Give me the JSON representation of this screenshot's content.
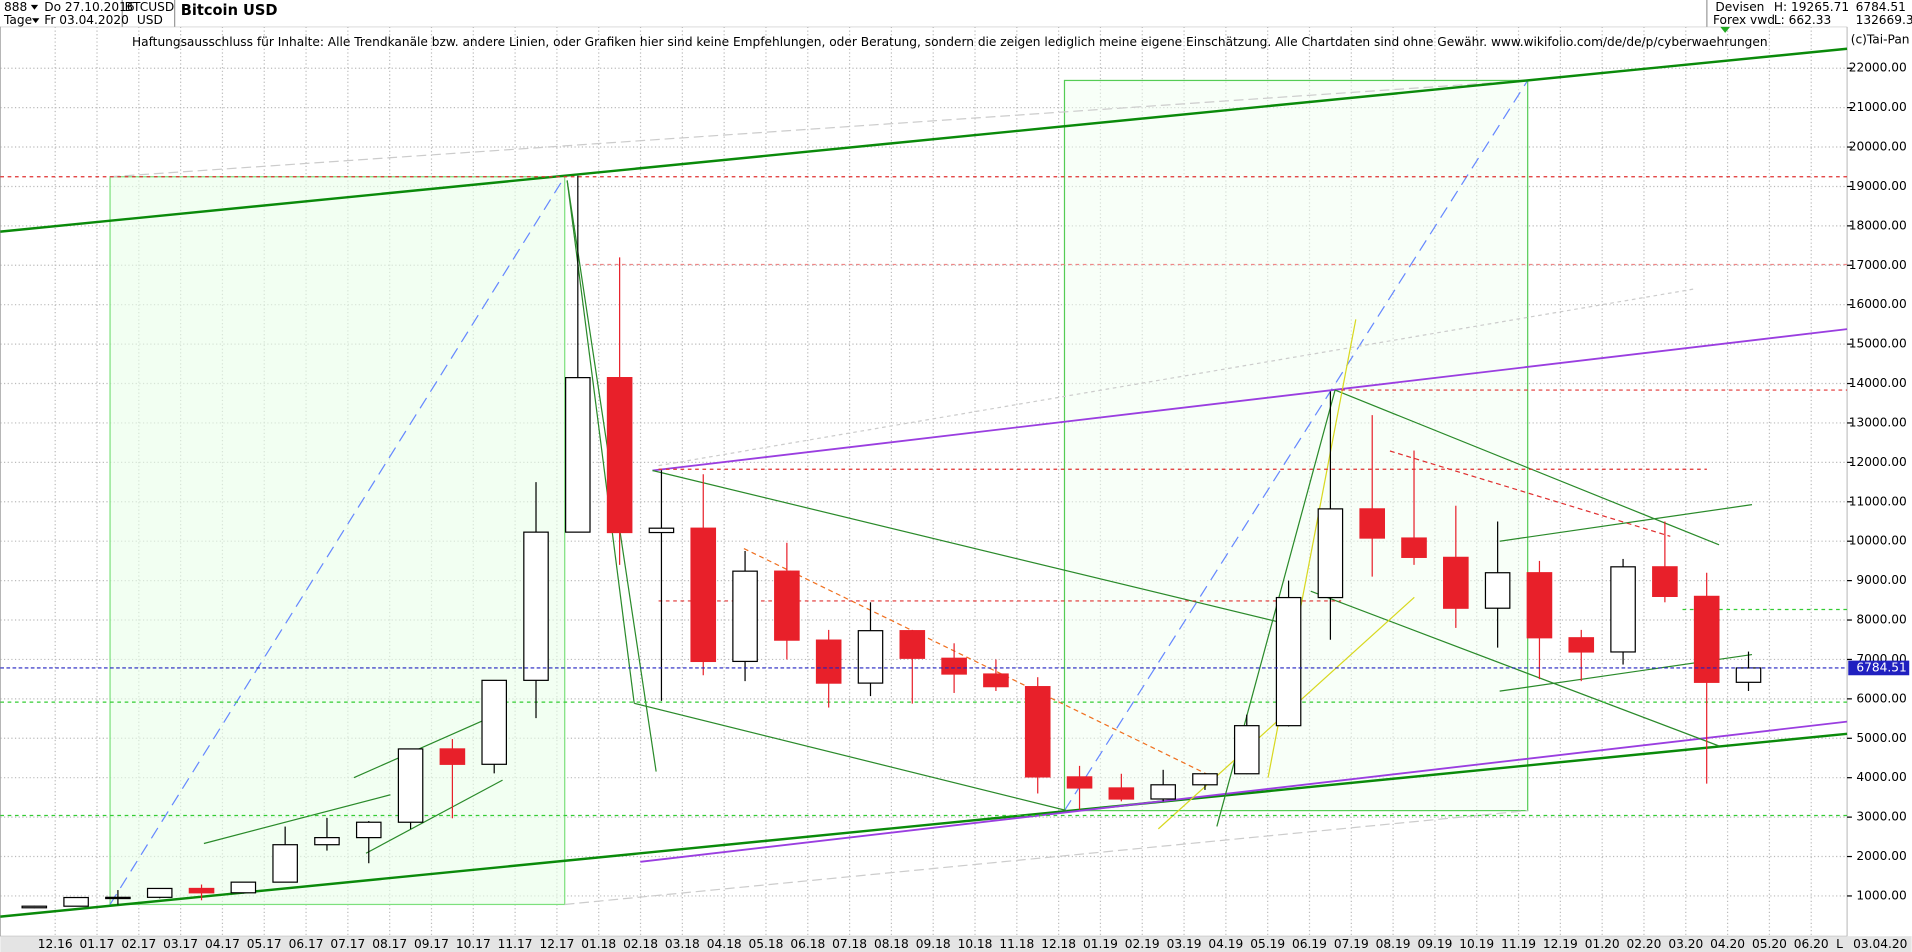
{
  "header": {
    "id": "888",
    "start_date": "Do 27.10.2016",
    "symbol": "BTCUSD",
    "currency": "USD",
    "period": "Tage",
    "end_date": "Fr 03.04.2020",
    "market": "Devisen",
    "source": "Forex vwd",
    "high": "H: 19265.71",
    "low": "L: 662.33",
    "last": "6784.51",
    "volume": "132669.3",
    "copyright": "(c)Tai-Pan",
    "axis_end_date": "03.04.20",
    "axis_scale": "L",
    "disclaimer": "Haftungsausschluss für Inhalte: Alle Trendkanäle bzw. andere Linien, oder Grafiken hier sind keine Empfehlungen, oder Beratung, sondern die zeigen lediglich meine eigene Einschätzung. Alle Chartdaten sind ohne Gewähr.  www.wikifolio.com/de/de/p/cyberwaehrungen"
  },
  "chart_data": {
    "type": "candlestick",
    "title": "Bitcoin USD",
    "categories": [
      null,
      "12.16",
      "01.17",
      "02.17",
      "03.17",
      "04.17",
      "05.17",
      "06.17",
      "07.17",
      "08.17",
      "09.17",
      "10.17",
      "11.17",
      "12.17",
      "01.18",
      "02.18",
      "03.18",
      "04.18",
      "05.18",
      "06.18",
      "07.18",
      "08.18",
      "09.18",
      "10.18",
      "11.18",
      "12.18",
      "01.19",
      "02.19",
      "03.19",
      "04.19",
      "05.19",
      "06.19",
      "07.19",
      "08.19",
      "09.19",
      "10.19",
      "11.19",
      "12.19",
      "01.20",
      "02.20",
      "03.20",
      "04.20",
      "05.20",
      "06.20"
    ],
    "open": [
      700,
      740,
      960,
      965,
      1190,
      1080,
      1350,
      2300,
      2480,
      2870,
      4730,
      4340,
      6470,
      10230,
      14150,
      10220,
      10330,
      6950,
      9240,
      7490,
      6400,
      7730,
      7030,
      6630,
      6310,
      4020,
      3740,
      3460,
      3820,
      4100,
      5320,
      8570,
      10820,
      10080,
      9590,
      8300,
      9200,
      7550,
      7190,
      9350,
      8600,
      6420,
      null,
      null
    ],
    "high": [
      750,
      970,
      1150,
      1200,
      1290,
      1350,
      2760,
      2980,
      2900,
      4740,
      4980,
      6470,
      11500,
      19270,
      17200,
      11800,
      11700,
      9750,
      9960,
      7750,
      8450,
      7750,
      7410,
      7000,
      6550,
      4300,
      4100,
      4200,
      4110,
      5600,
      9000,
      13800,
      13200,
      12300,
      10900,
      10500,
      9500,
      7750,
      9550,
      10500,
      9200,
      7200,
      null,
      null
    ],
    "low": [
      690,
      740,
      780,
      940,
      890,
      1060,
      1350,
      2150,
      1830,
      2700,
      2970,
      4110,
      5510,
      10230,
      9400,
      5950,
      6600,
      6450,
      7000,
      5780,
      6070,
      5880,
      6150,
      6200,
      3600,
      3190,
      3400,
      3400,
      3690,
      4090,
      5300,
      7500,
      9100,
      9400,
      7800,
      7300,
      6500,
      6450,
      6870,
      8450,
      3850,
      6200,
      null,
      null
    ],
    "close": [
      740,
      960,
      965,
      1190,
      1080,
      1350,
      2300,
      2480,
      2870,
      4730,
      4340,
      6470,
      10230,
      14150,
      10220,
      10330,
      6950,
      9240,
      7490,
      6400,
      7730,
      7030,
      6630,
      6310,
      4020,
      3740,
      3460,
      3820,
      4100,
      5320,
      8570,
      10820,
      10080,
      9590,
      8300,
      9200,
      7550,
      7190,
      9350,
      8600,
      6420,
      6784.51,
      null,
      null
    ],
    "up_color": "#000000",
    "down_color": "#e8202a",
    "last_price": 6784.51,
    "last_price_color": "#2020c0",
    "ylim": [
      -20,
      23050
    ],
    "yticks": [
      {
        "value": 1000,
        "label": "1000.00"
      },
      {
        "value": 2000,
        "label": "2000.00"
      },
      {
        "value": 3000,
        "label": "3000.00"
      },
      {
        "value": 4000,
        "label": "4000.00"
      },
      {
        "value": 5000,
        "label": "5000.00"
      },
      {
        "value": 6000,
        "label": "6000.00"
      },
      {
        "value": 7000,
        "label": "7000.00"
      },
      {
        "value": 8000,
        "label": "8000.00"
      },
      {
        "value": 9000,
        "label": "9000.00"
      },
      {
        "value": 10000,
        "label": "10000.00"
      },
      {
        "value": 11000,
        "label": "11000.00"
      },
      {
        "value": 12000,
        "label": "12000.00"
      },
      {
        "value": 13000,
        "label": "13000.00"
      },
      {
        "value": 14000,
        "label": "14000.00"
      },
      {
        "value": 15000,
        "label": "15000.00"
      },
      {
        "value": 16000,
        "label": "16000.00"
      },
      {
        "value": 17000,
        "label": "17000.00"
      },
      {
        "value": 18000,
        "label": "18000.00"
      },
      {
        "value": 19000,
        "label": "19000.00"
      },
      {
        "value": 20000,
        "label": "20000.00"
      },
      {
        "value": 21000,
        "label": "21000.00"
      },
      {
        "value": 22000,
        "label": "22000.00"
      }
    ],
    "grid": true
  }
}
